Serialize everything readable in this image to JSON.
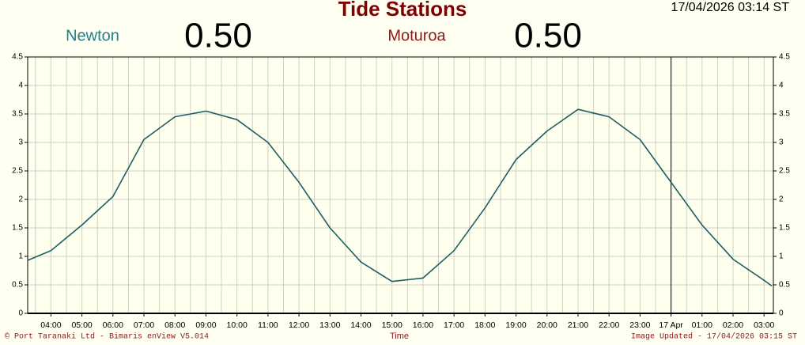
{
  "chart_data": {
    "type": "line",
    "title": "Tide Stations",
    "timestamp": "17/04/2026 03:14 ST",
    "readings": [
      {
        "name": "Newton",
        "value": 0.5,
        "label": "0.50",
        "color": "#1f7f8a"
      },
      {
        "name": "Moturoa",
        "value": 0.5,
        "label": "0.50",
        "color": "#8b1a1a"
      }
    ],
    "xlabel": "Time",
    "copyright": "© Port Taranaki Ltd - Bimaris enView V5.014",
    "updated": "Image Updated - 17/04/2026 03:15 ST",
    "x": [
      3.25,
      4,
      5,
      6,
      7,
      8,
      9,
      10,
      11,
      12,
      13,
      14,
      15,
      16,
      17,
      18,
      19,
      20,
      21,
      22,
      23,
      24,
      25,
      26,
      27,
      27.25
    ],
    "series": [
      {
        "color": "#1d5f66",
        "values": [
          0.93,
          1.1,
          1.55,
          2.05,
          3.05,
          3.45,
          3.55,
          3.4,
          3.0,
          2.3,
          1.5,
          0.9,
          0.56,
          0.62,
          1.1,
          1.85,
          2.7,
          3.2,
          3.58,
          3.45,
          3.05,
          2.3,
          1.55,
          0.95,
          0.58,
          0.48
        ]
      }
    ],
    "xlim": [
      3.25,
      27.3
    ],
    "xticks": [
      {
        "value": 4,
        "label": "04:00"
      },
      {
        "value": 5,
        "label": "05:00"
      },
      {
        "value": 6,
        "label": "06:00"
      },
      {
        "value": 7,
        "label": "07:00"
      },
      {
        "value": 8,
        "label": "08:00"
      },
      {
        "value": 9,
        "label": "09:00"
      },
      {
        "value": 10,
        "label": "10:00"
      },
      {
        "value": 11,
        "label": "11:00"
      },
      {
        "value": 12,
        "label": "12:00"
      },
      {
        "value": 13,
        "label": "13:00"
      },
      {
        "value": 14,
        "label": "14:00"
      },
      {
        "value": 15,
        "label": "15:00"
      },
      {
        "value": 16,
        "label": "16:00"
      },
      {
        "value": 17,
        "label": "17:00"
      },
      {
        "value": 18,
        "label": "18:00"
      },
      {
        "value": 19,
        "label": "19:00"
      },
      {
        "value": 20,
        "label": "20:00"
      },
      {
        "value": 21,
        "label": "21:00"
      },
      {
        "value": 22,
        "label": "22:00"
      },
      {
        "value": 23,
        "label": "23:00"
      },
      {
        "value": 24,
        "label": "17 Apr"
      },
      {
        "value": 25,
        "label": "01:00"
      },
      {
        "value": 26,
        "label": "02:00"
      },
      {
        "value": 27,
        "label": "03:00"
      }
    ],
    "ylim": [
      0,
      4.5
    ],
    "yticks": [
      0,
      0.5,
      1,
      1.5,
      2,
      2.5,
      3,
      3.5,
      4,
      4.5
    ],
    "grid": true
  }
}
